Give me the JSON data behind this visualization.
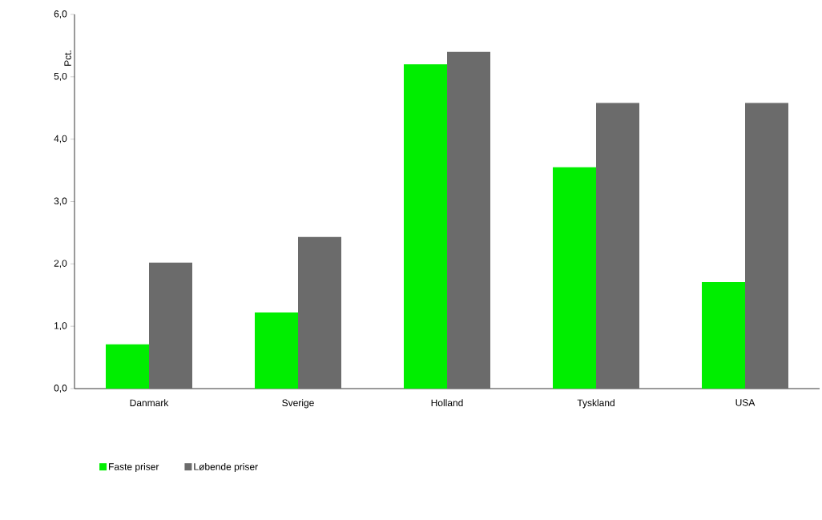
{
  "chart_data": {
    "type": "bar",
    "ylabel": "Pct.",
    "categories": [
      "Danmark",
      "Sverige",
      "Holland",
      "Tyskland",
      "USA"
    ],
    "series": [
      {
        "name": "Faste priser",
        "color": "#00ee00",
        "values": [
          0.71,
          1.22,
          5.2,
          3.55,
          1.71
        ]
      },
      {
        "name": "Løbende priser",
        "color": "#6b6b6b",
        "values": [
          2.02,
          2.43,
          5.4,
          4.58,
          4.58
        ]
      }
    ],
    "ylim": [
      0,
      6
    ],
    "yticks": [
      {
        "value": 0,
        "label": "0,0"
      },
      {
        "value": 1,
        "label": "1,0"
      },
      {
        "value": 2,
        "label": "2,0"
      },
      {
        "value": 3,
        "label": "3,0"
      },
      {
        "value": 4,
        "label": "4,0"
      },
      {
        "value": 5,
        "label": "5,0"
      },
      {
        "value": 6,
        "label": "6,0"
      }
    ],
    "grid": false,
    "legend": "bottom"
  }
}
